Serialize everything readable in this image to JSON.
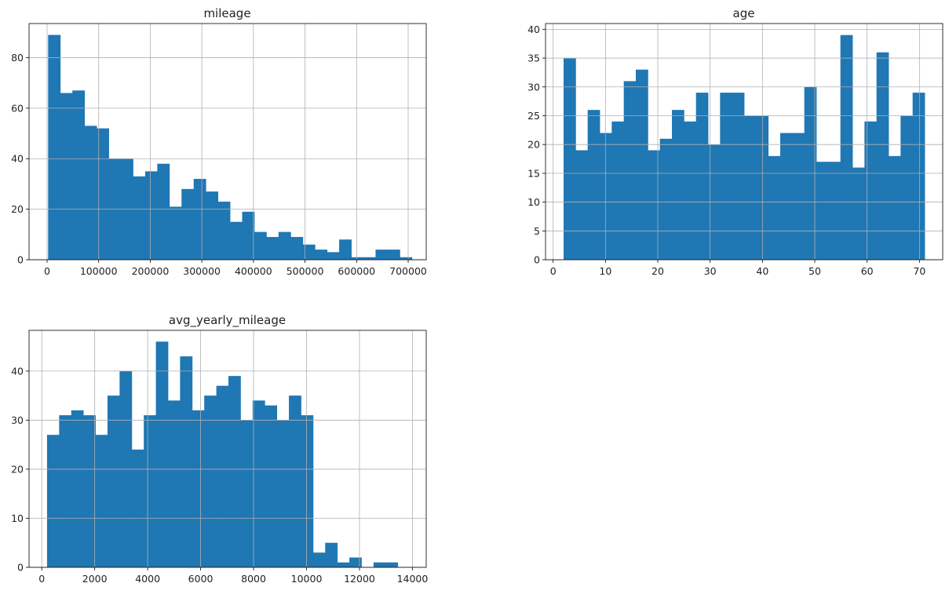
{
  "chart_data": [
    {
      "type": "bar",
      "title": "mileage",
      "xlabel": "",
      "ylabel": "",
      "xlim": [
        -35000,
        735000
      ],
      "ylim": [
        0,
        93.5
      ],
      "xticks": [
        0,
        100000,
        200000,
        300000,
        400000,
        500000,
        600000,
        700000
      ],
      "xtick_labels": [
        "0",
        "100000",
        "200000",
        "300000",
        "400000",
        "500000",
        "600000",
        "700000"
      ],
      "yticks": [
        0,
        20,
        40,
        60,
        80
      ],
      "ytick_labels": [
        "0",
        "20",
        "40",
        "60",
        "80"
      ],
      "grid": true,
      "legend": "none",
      "bin_start": 2000,
      "bin_width": 23510,
      "values": [
        89,
        66,
        67,
        53,
        52,
        40,
        40,
        33,
        35,
        38,
        21,
        28,
        32,
        27,
        23,
        15,
        19,
        11,
        9,
        11,
        9,
        6,
        4,
        3,
        8,
        1,
        1,
        4,
        4,
        1
      ],
      "bar_color": "#1f77b4"
    },
    {
      "type": "bar",
      "title": "age",
      "xlabel": "",
      "ylabel": "",
      "xlim": [
        -1.45,
        74.45
      ],
      "ylim": [
        0,
        41
      ],
      "xticks": [
        0,
        10,
        20,
        30,
        40,
        50,
        60,
        70
      ],
      "xtick_labels": [
        "0",
        "10",
        "20",
        "30",
        "40",
        "50",
        "60",
        "70"
      ],
      "yticks": [
        0,
        5,
        10,
        15,
        20,
        25,
        30,
        35,
        40
      ],
      "ytick_labels": [
        "0",
        "5",
        "10",
        "15",
        "20",
        "25",
        "30",
        "35",
        "40"
      ],
      "grid": true,
      "legend": "none",
      "bin_start": 2,
      "bin_width": 2.3,
      "values": [
        35,
        19,
        26,
        22,
        24,
        31,
        33,
        19,
        21,
        26,
        24,
        29,
        20,
        29,
        29,
        25,
        25,
        18,
        22,
        22,
        30,
        17,
        17,
        39,
        16,
        24,
        36,
        18,
        25,
        29
      ],
      "bar_color": "#1f77b4"
    },
    {
      "type": "bar",
      "title": "avg_yearly_mileage",
      "xlabel": "",
      "ylabel": "",
      "xlim": [
        -480,
        14520
      ],
      "ylim": [
        0,
        48.3
      ],
      "xticks": [
        0,
        2000,
        4000,
        6000,
        8000,
        10000,
        12000,
        14000
      ],
      "xtick_labels": [
        "0",
        "2000",
        "4000",
        "6000",
        "8000",
        "10000",
        "12000",
        "14000"
      ],
      "yticks": [
        0,
        10,
        20,
        30,
        40
      ],
      "ytick_labels": [
        "0",
        "10",
        "20",
        "30",
        "40"
      ],
      "grid": true,
      "legend": "none",
      "bin_start": 200,
      "bin_width": 456.67,
      "values": [
        27,
        31,
        32,
        31,
        27,
        35,
        40,
        24,
        31,
        46,
        34,
        43,
        32,
        35,
        37,
        39,
        30,
        34,
        33,
        30,
        35,
        31,
        3,
        5,
        1,
        2,
        0,
        1,
        1,
        0
      ],
      "bar_color": "#1f77b4"
    }
  ]
}
